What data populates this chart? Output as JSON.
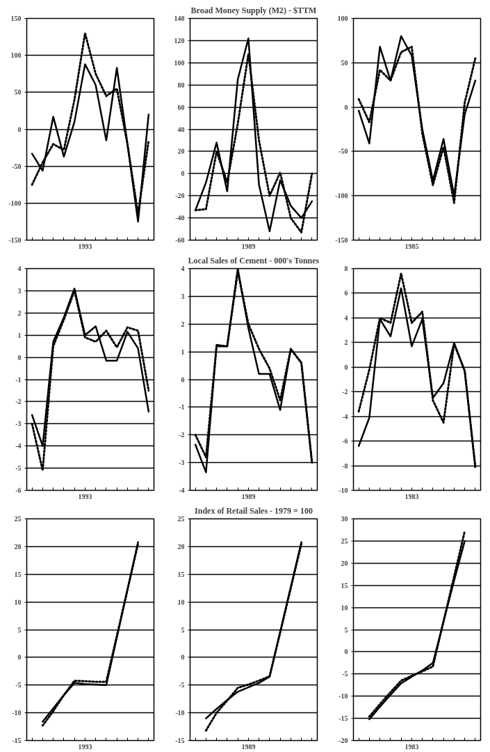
{
  "chart_data": [
    {
      "type": "line",
      "categories": [
        null,
        null,
        null,
        null,
        null,
        "1993",
        null,
        null,
        null,
        null,
        null,
        null
      ],
      "ylim": [
        -150,
        150
      ],
      "yticks": [
        -150,
        -100,
        -50,
        0,
        50,
        100,
        150
      ],
      "grid": "y",
      "series": [
        {
          "color": "#000000",
          "line_style": "solid",
          "values": [
            -33,
            -56,
            17,
            -37,
            10,
            88,
            60,
            -15,
            83,
            -20,
            -125,
            20
          ]
        },
        {
          "color": "#000000",
          "line_style": "dotted",
          "values": [
            -75,
            -45,
            -20,
            -28,
            40,
            130,
            75,
            45,
            55,
            -20,
            -115,
            -15
          ]
        }
      ]
    },
    {
      "type": "line",
      "title": "Broad Money Supply (M2) - $TTM",
      "categories": [
        null,
        null,
        null,
        null,
        null,
        "1989",
        null,
        null,
        null,
        null,
        null,
        null
      ],
      "ylim": [
        -60,
        140
      ],
      "yticks": [
        -60,
        -40,
        -20,
        0,
        20,
        40,
        60,
        80,
        100,
        120,
        140
      ],
      "grid": "y",
      "series": [
        {
          "color": "#000000",
          "line_style": "solid",
          "values": [
            -33,
            -8,
            28,
            -16,
            85,
            122,
            -10,
            -52,
            -6,
            -29,
            -40,
            -25
          ]
        },
        {
          "color": "#000000",
          "line_style": "dotted",
          "values": [
            -33,
            -32,
            20,
            -8,
            45,
            108,
            30,
            -20,
            1,
            -40,
            -53,
            0
          ]
        }
      ]
    },
    {
      "type": "line",
      "categories": [
        null,
        null,
        null,
        null,
        null,
        "1985",
        null,
        null,
        null,
        null,
        null,
        null
      ],
      "ylim": [
        -150,
        100
      ],
      "yticks": [
        -150,
        -100,
        -50,
        0,
        50,
        100
      ],
      "grid": "y",
      "series": [
        {
          "color": "#000000",
          "line_style": "solid",
          "values": [
            -4,
            -41,
            68,
            30,
            80,
            58,
            -25,
            -83,
            -36,
            -100,
            -8,
            30
          ]
        },
        {
          "color": "#000000",
          "line_style": "dotted",
          "values": [
            9,
            -17,
            42,
            30,
            62,
            68,
            -30,
            -88,
            -45,
            -108,
            5,
            55
          ]
        }
      ]
    },
    {
      "type": "line",
      "categories": [
        null,
        null,
        null,
        null,
        null,
        "1993",
        null,
        null,
        null,
        null,
        null,
        null
      ],
      "ylim": [
        -6,
        4
      ],
      "yticks": [
        -6,
        -5,
        -4,
        -3,
        -2,
        -1,
        0,
        1,
        2,
        3,
        4
      ],
      "grid": "y",
      "series": [
        {
          "color": "#000000",
          "line_style": "solid",
          "values": [
            -2.6,
            -4.0,
            0.7,
            1.8,
            3.1,
            1.0,
            1.4,
            -0.15,
            -0.15,
            1.15,
            0.4,
            -2.45
          ]
        },
        {
          "color": "#000000",
          "line_style": "dotted",
          "values": [
            -3.0,
            -5.1,
            0.5,
            1.7,
            3.0,
            0.9,
            0.7,
            1.2,
            0.45,
            1.35,
            1.2,
            -1.5
          ]
        }
      ]
    },
    {
      "type": "line",
      "title": "Local Sales of Cement - 000's Tonnes",
      "categories": [
        null,
        null,
        null,
        null,
        null,
        "1989",
        null,
        null,
        null,
        null,
        null,
        null
      ],
      "ylim": [
        -4,
        4
      ],
      "yticks": [
        -4,
        -3,
        -2,
        -1,
        0,
        1,
        2,
        3,
        4
      ],
      "grid": "y",
      "series": [
        {
          "color": "#000000",
          "line_style": "solid",
          "values": [
            -2.35,
            -3.35,
            1.25,
            1.2,
            4.0,
            1.85,
            0.2,
            0.2,
            -1.1,
            1.1,
            0.6,
            -3.0
          ]
        },
        {
          "color": "#000000",
          "line_style": "dotted",
          "values": [
            -2.0,
            -2.8,
            1.2,
            1.2,
            3.9,
            2.0,
            1.1,
            0.4,
            -0.75,
            1.1,
            0.6,
            -3.0
          ]
        }
      ]
    },
    {
      "type": "line",
      "categories": [
        null,
        null,
        null,
        null,
        null,
        "1983",
        null,
        null,
        null,
        null,
        null,
        null
      ],
      "ylim": [
        -10,
        8
      ],
      "yticks": [
        -10,
        -8,
        -6,
        -4,
        -2,
        0,
        2,
        4,
        6,
        8
      ],
      "grid": "y",
      "series": [
        {
          "color": "#000000",
          "line_style": "solid",
          "values": [
            -6.4,
            -4.1,
            3.9,
            2.5,
            6.4,
            1.7,
            3.9,
            -2.5,
            -1.3,
            1.95,
            -0.3,
            -8.1
          ]
        },
        {
          "color": "#000000",
          "line_style": "dotted",
          "values": [
            -3.6,
            -0.2,
            4.0,
            3.6,
            7.6,
            3.6,
            4.5,
            -2.7,
            -4.5,
            1.9,
            -0.3,
            -8.1
          ]
        }
      ]
    },
    {
      "type": "line",
      "categories": [
        null,
        null,
        null,
        null,
        null,
        "1993",
        null,
        null,
        null,
        null,
        null,
        null
      ],
      "ylim": [
        -15,
        25
      ],
      "yticks": [
        -15,
        -10,
        -5,
        0,
        5,
        10,
        15,
        20,
        25
      ],
      "grid": "y",
      "series": [
        {
          "color": "#000000",
          "line_style": "solid",
          "values": [
            null,
            -11.6,
            -9.2,
            -6.8,
            -4.6,
            -4.8,
            -4.9,
            -5.0,
            3.6,
            12.2,
            20.8,
            null
          ]
        },
        {
          "color": "#000000",
          "line_style": "dotted",
          "values": [
            null,
            -12.3,
            -9.7,
            -6.8,
            -4.2,
            -4.3,
            -4.4,
            -4.4,
            3.9,
            12.2,
            20.5,
            null
          ]
        }
      ]
    },
    {
      "type": "line",
      "title": "Index of Retail Sales - 1979 = 100",
      "categories": [
        null,
        null,
        null,
        null,
        null,
        "1989",
        null,
        null,
        null,
        null,
        null,
        null
      ],
      "ylim": [
        -15,
        25
      ],
      "yticks": [
        -15,
        -10,
        -5,
        0,
        5,
        10,
        15,
        20,
        25
      ],
      "grid": "y",
      "series": [
        {
          "color": "#000000",
          "line_style": "solid",
          "values": [
            null,
            -11.0,
            -9.3,
            -7.7,
            -6.2,
            -5.4,
            -4.6,
            -3.5,
            4.6,
            12.7,
            20.8,
            null
          ]
        },
        {
          "color": "#000000",
          "line_style": "dotted",
          "values": [
            null,
            -13.2,
            -10.0,
            -7.8,
            -5.5,
            -4.9,
            -4.2,
            -3.4,
            4.5,
            12.5,
            20.5,
            null
          ]
        }
      ]
    },
    {
      "type": "line",
      "categories": [
        null,
        null,
        null,
        null,
        null,
        "1983",
        null,
        null,
        null,
        null,
        null,
        null
      ],
      "ylim": [
        -20,
        30
      ],
      "yticks": [
        -20,
        -15,
        -10,
        -5,
        0,
        5,
        10,
        15,
        20,
        25,
        30
      ],
      "grid": "y",
      "series": [
        {
          "color": "#000000",
          "line_style": "solid",
          "values": [
            null,
            -15.2,
            -12.4,
            -9.7,
            -7.1,
            -5.6,
            -4.2,
            -2.5,
            6.8,
            16.1,
            25.0,
            null
          ]
        },
        {
          "color": "#000000",
          "line_style": "dotted",
          "values": [
            null,
            -14.6,
            -11.8,
            -9.1,
            -6.5,
            -5.4,
            -4.4,
            -3.3,
            6.9,
            17.0,
            27.2,
            null
          ]
        }
      ]
    }
  ]
}
